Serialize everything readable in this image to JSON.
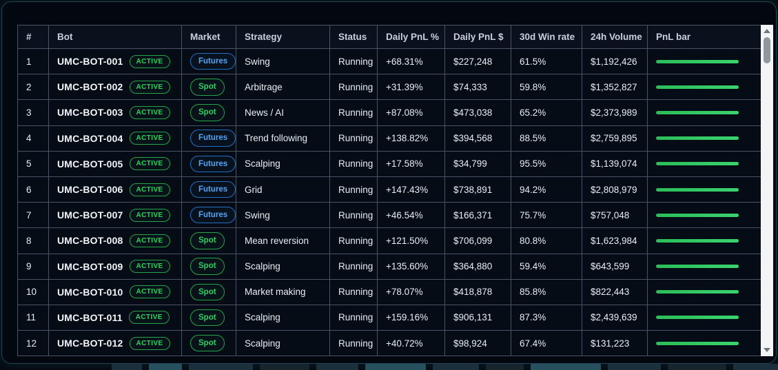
{
  "table": {
    "columns": [
      {
        "key": "num",
        "label": "#"
      },
      {
        "key": "bot",
        "label": "Bot"
      },
      {
        "key": "market",
        "label": "Market"
      },
      {
        "key": "strategy",
        "label": "Strategy"
      },
      {
        "key": "status",
        "label": "Status"
      },
      {
        "key": "pnl_pct",
        "label": "Daily PnL %"
      },
      {
        "key": "pnl_usd",
        "label": "Daily PnL $"
      },
      {
        "key": "win_rate",
        "label": "30d Win rate"
      },
      {
        "key": "volume",
        "label": "24h Volume"
      },
      {
        "key": "pnl_bar",
        "label": "PnL bar"
      }
    ],
    "rows": [
      {
        "num": "1",
        "bot": "UMC-BOT-001",
        "bot_badge": "ACTIVE",
        "market": "Futures",
        "strategy": "Swing",
        "status": "Running",
        "daily_pnl_pct": "+68.31%",
        "daily_pnl_usd": "$227,248",
        "win_rate": "61.5%",
        "volume": "$1,192,426",
        "pnl_bar_pct": 100
      },
      {
        "num": "2",
        "bot": "UMC-BOT-002",
        "bot_badge": "ACTIVE",
        "market": "Spot",
        "strategy": "Arbitrage",
        "status": "Running",
        "daily_pnl_pct": "+31.39%",
        "daily_pnl_usd": "$74,333",
        "win_rate": "59.8%",
        "volume": "$1,352,827",
        "pnl_bar_pct": 100
      },
      {
        "num": "3",
        "bot": "UMC-BOT-003",
        "bot_badge": "ACTIVE",
        "market": "Spot",
        "strategy": "News / AI",
        "status": "Running",
        "daily_pnl_pct": "+87.08%",
        "daily_pnl_usd": "$473,038",
        "win_rate": "65.2%",
        "volume": "$2,373,989",
        "pnl_bar_pct": 100
      },
      {
        "num": "4",
        "bot": "UMC-BOT-004",
        "bot_badge": "ACTIVE",
        "market": "Futures",
        "strategy": "Trend following",
        "status": "Running",
        "daily_pnl_pct": "+138.82%",
        "daily_pnl_usd": "$394,568",
        "win_rate": "88.5%",
        "volume": "$2,759,895",
        "pnl_bar_pct": 100
      },
      {
        "num": "5",
        "bot": "UMC-BOT-005",
        "bot_badge": "ACTIVE",
        "market": "Futures",
        "strategy": "Scalping",
        "status": "Running",
        "daily_pnl_pct": "+17.58%",
        "daily_pnl_usd": "$34,799",
        "win_rate": "95.5%",
        "volume": "$1,139,074",
        "pnl_bar_pct": 100
      },
      {
        "num": "6",
        "bot": "UMC-BOT-006",
        "bot_badge": "ACTIVE",
        "market": "Futures",
        "strategy": "Grid",
        "status": "Running",
        "daily_pnl_pct": "+147.43%",
        "daily_pnl_usd": "$738,891",
        "win_rate": "94.2%",
        "volume": "$2,808,979",
        "pnl_bar_pct": 100
      },
      {
        "num": "7",
        "bot": "UMC-BOT-007",
        "bot_badge": "ACTIVE",
        "market": "Futures",
        "strategy": "Swing",
        "status": "Running",
        "daily_pnl_pct": "+46.54%",
        "daily_pnl_usd": "$166,371",
        "win_rate": "75.7%",
        "volume": "$757,048",
        "pnl_bar_pct": 100
      },
      {
        "num": "8",
        "bot": "UMC-BOT-008",
        "bot_badge": "ACTIVE",
        "market": "Spot",
        "strategy": "Mean reversion",
        "status": "Running",
        "daily_pnl_pct": "+121.50%",
        "daily_pnl_usd": "$706,099",
        "win_rate": "80.8%",
        "volume": "$1,623,984",
        "pnl_bar_pct": 100
      },
      {
        "num": "9",
        "bot": "UMC-BOT-009",
        "bot_badge": "ACTIVE",
        "market": "Spot",
        "strategy": "Scalping",
        "status": "Running",
        "daily_pnl_pct": "+135.60%",
        "daily_pnl_usd": "$364,880",
        "win_rate": "59.4%",
        "volume": "$643,599",
        "pnl_bar_pct": 100
      },
      {
        "num": "10",
        "bot": "UMC-BOT-010",
        "bot_badge": "ACTIVE",
        "market": "Spot",
        "strategy": "Market making",
        "status": "Running",
        "daily_pnl_pct": "+78.07%",
        "daily_pnl_usd": "$418,878",
        "win_rate": "85.8%",
        "volume": "$822,443",
        "pnl_bar_pct": 100
      },
      {
        "num": "11",
        "bot": "UMC-BOT-011",
        "bot_badge": "ACTIVE",
        "market": "Spot",
        "strategy": "Scalping",
        "status": "Running",
        "daily_pnl_pct": "+159.16%",
        "daily_pnl_usd": "$906,131",
        "win_rate": "87.3%",
        "volume": "$2,439,639",
        "pnl_bar_pct": 100
      },
      {
        "num": "12",
        "bot": "UMC-BOT-012",
        "bot_badge": "ACTIVE",
        "market": "Spot",
        "strategy": "Scalping",
        "status": "Running",
        "daily_pnl_pct": "+40.72%",
        "daily_pnl_usd": "$98,924",
        "win_rate": "67.4%",
        "volume": "$131,223",
        "pnl_bar_pct": 100
      }
    ]
  },
  "colors": {
    "accent_green": "#2ed05f",
    "accent_blue": "#55a4f2",
    "bar_green": "#31c761",
    "frame_border_teal": "#1d4750",
    "table_border": "#4a5463",
    "background": "#030810"
  },
  "scrollbar": {
    "up_icon": "scroll-up-arrow",
    "down_icon": "scroll-down-arrow"
  }
}
